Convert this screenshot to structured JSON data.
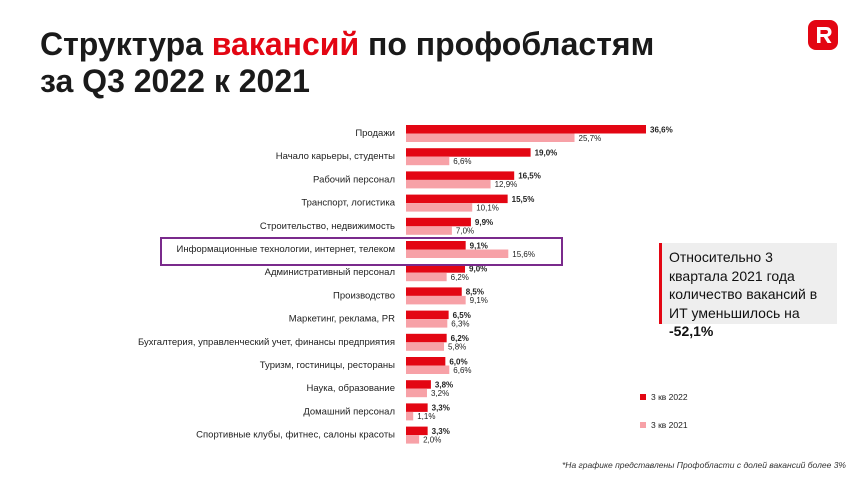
{
  "header": {
    "title_part1": "Структура ",
    "title_accent": "вакансий",
    "title_part2": " по профобластям",
    "title_line2": "за Q3 2022 к 2021"
  },
  "callout": {
    "text": "Относительно 3 квартала 2021 года количество вакансий в ИТ уменьшилось на ",
    "value": "-52,1%"
  },
  "footnote": "*На графике представлены Профобласти с долей вакансий более 3%",
  "colors": {
    "accent": "#e30613",
    "series_2022": "#e30613",
    "series_2021": "#f7a1a7",
    "highlight": "#7a2a8c"
  },
  "logo": {
    "icon": "r-logo-icon"
  },
  "chart_data": {
    "type": "bar",
    "orientation": "horizontal",
    "categories": [
      "Продажи",
      "Начало карьеры, студенты",
      "Рабочий персонал",
      "Транспорт, логистика",
      "Строительство, недвижимость",
      "Информационные технологии, интернет, телеком",
      "Административный персонал",
      "Производство",
      "Маркетинг, реклама, PR",
      "Бухгалтерия, управленческий учет, финансы предприятия",
      "Туризм, гостиницы, рестораны",
      "Наука, образование",
      "Домашний персонал",
      "Спортивные клубы, фитнес, салоны красоты"
    ],
    "series": [
      {
        "name": "3 кв 2022",
        "values": [
          36.6,
          19.0,
          16.5,
          15.5,
          9.9,
          9.1,
          9.0,
          8.5,
          6.5,
          6.2,
          6.0,
          3.8,
          3.3,
          3.3
        ],
        "labels": [
          "36,6%",
          "19,0%",
          "16,5%",
          "15,5%",
          "9,9%",
          "9,1%",
          "9,0%",
          "8,5%",
          "6,5%",
          "6,2%",
          "6,0%",
          "3,8%",
          "3,3%",
          "3,3%"
        ]
      },
      {
        "name": "3 кв 2021",
        "values": [
          25.7,
          6.6,
          12.9,
          10.1,
          7.0,
          15.6,
          6.2,
          9.1,
          6.3,
          5.8,
          6.6,
          3.2,
          1.1,
          2.0
        ],
        "labels": [
          "25,7%",
          "6,6%",
          "12,9%",
          "10,1%",
          "7,0%",
          "15,6%",
          "6,2%",
          "9,1%",
          "6,3%",
          "5,8%",
          "6,6%",
          "3,2%",
          "1,1%",
          "2,0%"
        ]
      }
    ],
    "highlighted_category": "Информационные технологии, интернет, телеком",
    "legend_position": "bottom-right",
    "grid": false,
    "xlim": [
      0,
      36.6
    ]
  }
}
